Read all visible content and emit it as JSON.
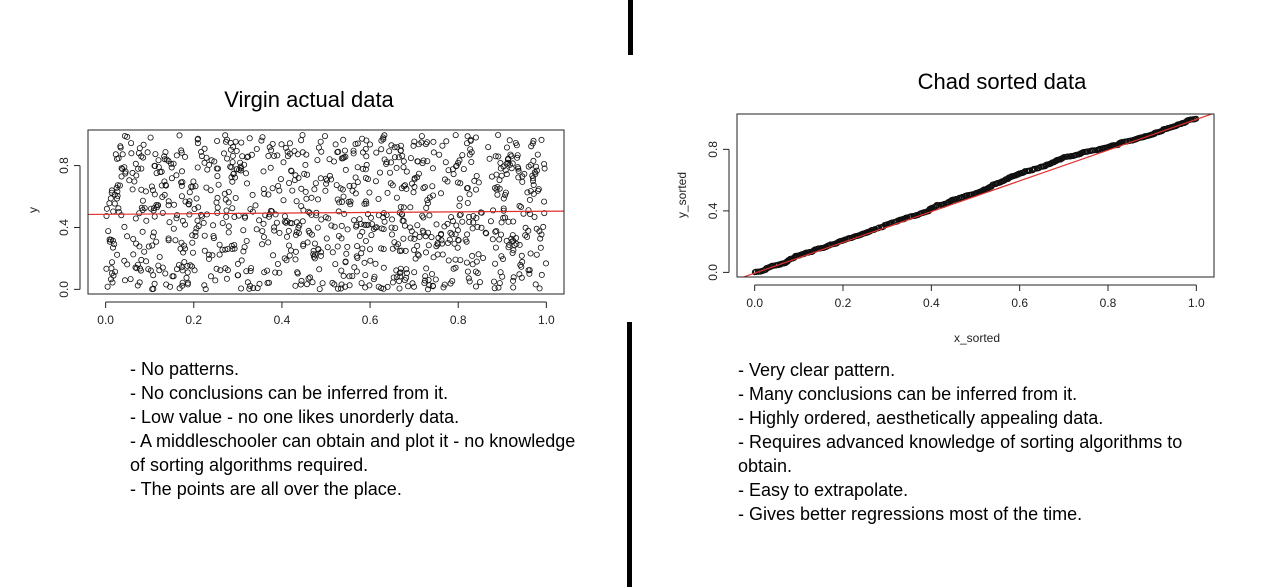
{
  "chart_data": [
    {
      "type": "scatter",
      "title": "Virgin actual data",
      "xlabel": "",
      "ylabel": "y",
      "xlim": [
        -0.04,
        1.04
      ],
      "ylim": [
        -0.03,
        1.03
      ],
      "x_ticks": [
        "0.0",
        "0.2",
        "0.4",
        "0.6",
        "0.8",
        "1.0"
      ],
      "y_ticks": [
        "0.0",
        "0.4",
        "0.8"
      ],
      "n_points": 1000,
      "distribution": "uniform random x and y in [0, 1]",
      "regression_line": {
        "intercept": 0.485,
        "slope": 0.02,
        "color": "#e03030"
      },
      "grid": false,
      "point_style": "open circle"
    },
    {
      "type": "scatter",
      "title": "Chad sorted data",
      "xlabel": "x_sorted",
      "ylabel": "y_sorted",
      "xlim": [
        -0.04,
        1.04
      ],
      "ylim": [
        -0.03,
        1.03
      ],
      "x_ticks": [
        "0.0",
        "0.2",
        "0.4",
        "0.6",
        "0.8",
        "1.0"
      ],
      "y_ticks": [
        "0.0",
        "0.4",
        "0.8"
      ],
      "n_points": 1000,
      "distribution": "sorted x vs sorted y, nearly identity",
      "regression_line": {
        "intercept": -0.005,
        "slope": 1.0,
        "color": "#e03030"
      },
      "grid": false,
      "point_style": "open circle"
    }
  ],
  "left_notes": [
    "- No patterns.",
    "- No conclusions can be inferred from it.",
    "- Low value - no one likes unorderly data.",
    "- A middleschooler can obtain and plot it - no knowledge of sorting algorithms required.",
    "- The points are all over the place."
  ],
  "right_notes": [
    "- Very clear pattern.",
    "- Many conclusions can be inferred from it.",
    "- Highly ordered, aesthetically appealing data.",
    "- Requires advanced knowledge of sorting algorithms to obtain.",
    "- Easy to extrapolate.",
    "- Gives better regressions most of the time."
  ]
}
